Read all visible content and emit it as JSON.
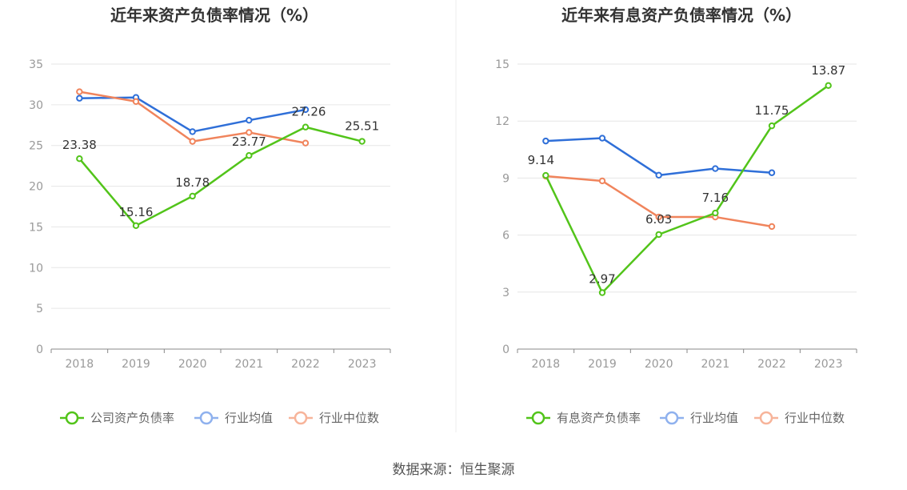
{
  "source_label": "数据来源：恒生聚源",
  "chart_data": [
    {
      "type": "line",
      "title": "近年来资产负债率情况（%）",
      "categories": [
        "2018",
        "2019",
        "2020",
        "2021",
        "2022",
        "2023"
      ],
      "y_ticks": [
        "0",
        "5",
        "10",
        "15",
        "20",
        "25",
        "30",
        "35"
      ],
      "ylim": [
        0,
        35
      ],
      "grid": true,
      "legend_position": "bottom",
      "series": [
        {
          "name": "公司资产负债率",
          "color": "#52c41a",
          "values": [
            23.38,
            15.16,
            18.78,
            23.77,
            27.26,
            25.51
          ],
          "labels": [
            "23.38",
            "15.16",
            "18.78",
            "23.77",
            "27.26",
            "25.51"
          ]
        },
        {
          "name": "行业均值",
          "color": "#2f6fd8",
          "values": [
            30.8,
            30.9,
            26.7,
            28.1,
            29.4,
            null
          ]
        },
        {
          "name": "行业中位数",
          "color": "#f0845c",
          "values": [
            31.6,
            30.4,
            25.5,
            26.6,
            25.3,
            null
          ]
        }
      ]
    },
    {
      "type": "line",
      "title": "近年来有息资产负债率情况（%）",
      "categories": [
        "2018",
        "2019",
        "2020",
        "2021",
        "2022",
        "2023"
      ],
      "y_ticks": [
        "0",
        "3",
        "6",
        "9",
        "12",
        "15"
      ],
      "ylim": [
        0,
        15
      ],
      "grid": true,
      "legend_position": "bottom",
      "series": [
        {
          "name": "有息资产负债率",
          "color": "#52c41a",
          "values": [
            9.14,
            2.97,
            6.03,
            7.16,
            11.75,
            13.87
          ],
          "labels": [
            "9.14",
            "2.97",
            "6.03",
            "7.16",
            "11.75",
            "13.87"
          ]
        },
        {
          "name": "行业均值",
          "color": "#2f6fd8",
          "values": [
            10.95,
            11.1,
            9.15,
            9.5,
            9.28,
            null
          ]
        },
        {
          "name": "行业中位数",
          "color": "#f0845c",
          "values": [
            9.1,
            8.85,
            6.95,
            6.95,
            6.45,
            null
          ]
        }
      ]
    }
  ]
}
